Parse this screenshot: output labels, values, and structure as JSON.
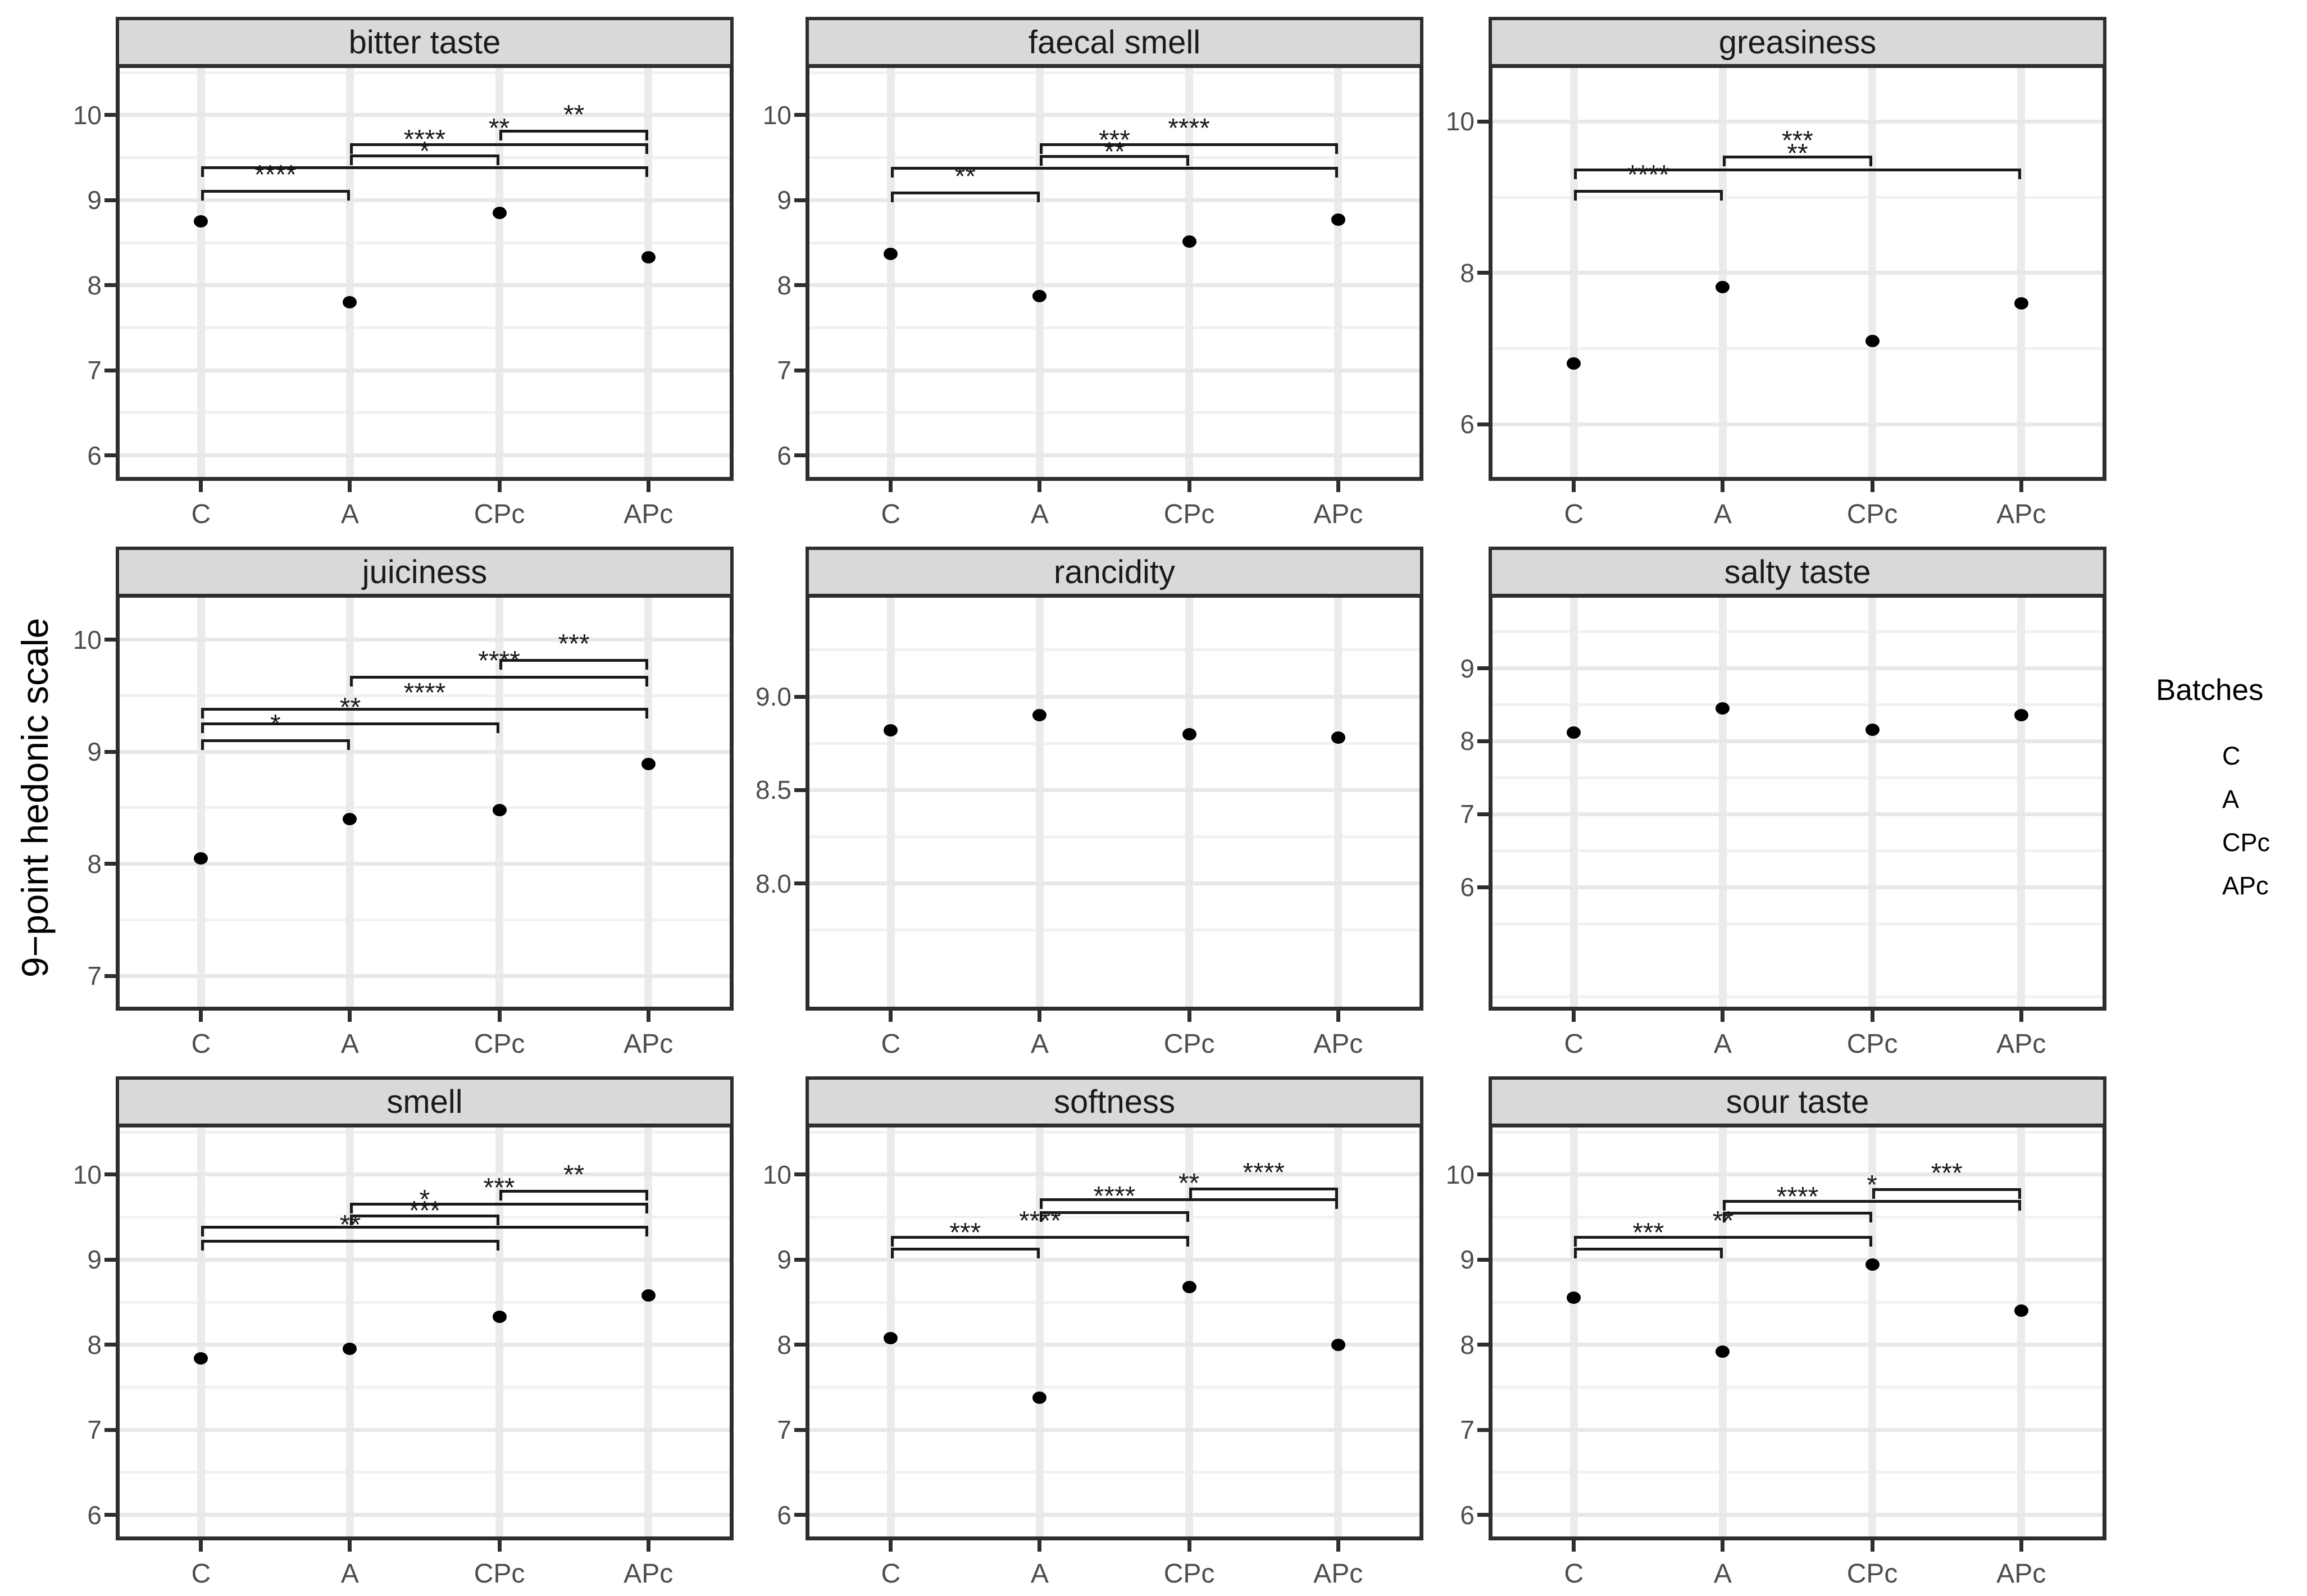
{
  "figure": {
    "y_axis_title": "9−point hedonic scale",
    "x_categories": [
      "C",
      "A",
      "CPc",
      "APc"
    ],
    "legend": {
      "title": "Batches",
      "items": [
        "C",
        "A",
        "CPc",
        "APc"
      ]
    },
    "colors": {
      "strip_fill": "#d9d9d9",
      "panel_border": "#2e2e2e",
      "grid_major": "#e8e8e8",
      "grid_minor": "#f1f1f1",
      "grid_vertical": "#ebebeb",
      "point": "#000000",
      "tick_label": "#4d4d4d",
      "bracket": "#1a1a1a"
    }
  },
  "chart_data": [
    {
      "type": "scatter",
      "title": "bitter taste",
      "categories": [
        "C",
        "A",
        "CPc",
        "APc"
      ],
      "values": [
        8.75,
        7.8,
        8.85,
        8.33
      ],
      "ylim": [
        5.7,
        10.6
      ],
      "ytick_labels": [
        "10",
        "9",
        "8",
        "7",
        "6"
      ],
      "ytick_values": [
        10,
        9,
        8,
        7,
        6
      ],
      "significance_brackets": [
        {
          "group1": "C",
          "group2": "A",
          "label": "****",
          "y": 9.12
        },
        {
          "group1": "C",
          "group2": "APc",
          "label": "*",
          "y": 9.4
        },
        {
          "group1": "A",
          "group2": "CPc",
          "label": "****",
          "y": 9.54
        },
        {
          "group1": "A",
          "group2": "APc",
          "label": "**",
          "y": 9.67
        },
        {
          "group1": "CPc",
          "group2": "APc",
          "label": "**",
          "y": 9.83
        }
      ]
    },
    {
      "type": "scatter",
      "title": "faecal smell",
      "categories": [
        "C",
        "A",
        "CPc",
        "APc"
      ],
      "values": [
        8.37,
        7.87,
        8.51,
        8.77
      ],
      "ylim": [
        5.7,
        10.6
      ],
      "ytick_labels": [
        "10",
        "9",
        "8",
        "7",
        "6"
      ],
      "ytick_values": [
        10,
        9,
        8,
        7,
        6
      ],
      "significance_brackets": [
        {
          "group1": "C",
          "group2": "A",
          "label": "**",
          "y": 9.1
        },
        {
          "group1": "C",
          "group2": "APc",
          "label": "**",
          "y": 9.39
        },
        {
          "group1": "A",
          "group2": "CPc",
          "label": "***",
          "y": 9.53
        },
        {
          "group1": "A",
          "group2": "APc",
          "label": "****",
          "y": 9.67
        }
      ]
    },
    {
      "type": "scatter",
      "title": "greasiness",
      "categories": [
        "C",
        "A",
        "CPc",
        "APc"
      ],
      "values": [
        6.8,
        7.81,
        7.1,
        7.6
      ],
      "ylim": [
        5.25,
        10.76
      ],
      "ytick_labels": [
        "10",
        "8",
        "6"
      ],
      "ytick_values": [
        10,
        8,
        6
      ],
      "significance_brackets": [
        {
          "group1": "C",
          "group2": "A",
          "label": "****",
          "y": 9.1
        },
        {
          "group1": "C",
          "group2": "APc",
          "label": "**",
          "y": 9.38
        },
        {
          "group1": "A",
          "group2": "CPc",
          "label": "***",
          "y": 9.55
        }
      ]
    },
    {
      "type": "scatter",
      "title": "juiciness",
      "categories": [
        "C",
        "A",
        "CPc",
        "APc"
      ],
      "values": [
        8.05,
        8.4,
        8.48,
        8.89
      ],
      "ylim": [
        6.69,
        10.41
      ],
      "ytick_labels": [
        "10",
        "9",
        "8",
        "7"
      ],
      "ytick_values": [
        10,
        9,
        8,
        7
      ],
      "significance_brackets": [
        {
          "group1": "C",
          "group2": "A",
          "label": "*",
          "y": 9.11
        },
        {
          "group1": "C",
          "group2": "CPc",
          "label": "**",
          "y": 9.26
        },
        {
          "group1": "C",
          "group2": "APc",
          "label": "****",
          "y": 9.39
        },
        {
          "group1": "A",
          "group2": "APc",
          "label": "****",
          "y": 9.68
        },
        {
          "group1": "CPc",
          "group2": "APc",
          "label": "***",
          "y": 9.83
        }
      ]
    },
    {
      "type": "scatter",
      "title": "rancidity",
      "categories": [
        "C",
        "A",
        "CPc",
        "APc"
      ],
      "values": [
        8.82,
        8.9,
        8.8,
        8.78
      ],
      "ylim": [
        7.32,
        9.55
      ],
      "ytick_labels": [
        "9.0",
        "8.5",
        "8.0"
      ],
      "ytick_values": [
        9.0,
        8.5,
        8.0
      ],
      "significance_brackets": []
    },
    {
      "type": "scatter",
      "title": "salty taste",
      "categories": [
        "C",
        "A",
        "CPc",
        "APc"
      ],
      "values": [
        8.12,
        8.45,
        8.16,
        8.36
      ],
      "ylim": [
        4.31,
        10.02
      ],
      "ytick_labels": [
        "9",
        "8",
        "7",
        "6"
      ],
      "ytick_values": [
        9,
        8,
        7,
        6
      ],
      "significance_brackets": []
    },
    {
      "type": "scatter",
      "title": "smell",
      "categories": [
        "C",
        "A",
        "CPc",
        "APc"
      ],
      "values": [
        7.84,
        7.95,
        8.33,
        8.58
      ],
      "ylim": [
        5.7,
        10.6
      ],
      "ytick_labels": [
        "10",
        "9",
        "8",
        "7",
        "6"
      ],
      "ytick_values": [
        10,
        9,
        8,
        7,
        6
      ],
      "significance_brackets": [
        {
          "group1": "C",
          "group2": "CPc",
          "label": "**",
          "y": 9.23
        },
        {
          "group1": "C",
          "group2": "APc",
          "label": "***",
          "y": 9.4
        },
        {
          "group1": "A",
          "group2": "CPc",
          "label": "*",
          "y": 9.53
        },
        {
          "group1": "A",
          "group2": "APc",
          "label": "***",
          "y": 9.67
        },
        {
          "group1": "CPc",
          "group2": "APc",
          "label": "**",
          "y": 9.82
        }
      ]
    },
    {
      "type": "scatter",
      "title": "softness",
      "categories": [
        "C",
        "A",
        "CPc",
        "APc"
      ],
      "values": [
        8.08,
        7.38,
        8.68,
        8.0
      ],
      "ylim": [
        5.7,
        10.6
      ],
      "ytick_labels": [
        "10",
        "9",
        "8",
        "7",
        "6"
      ],
      "ytick_values": [
        10,
        9,
        8,
        7,
        6
      ],
      "significance_brackets": [
        {
          "group1": "C",
          "group2": "A",
          "label": "***",
          "y": 9.14
        },
        {
          "group1": "C",
          "group2": "CPc",
          "label": "****",
          "y": 9.28
        },
        {
          "group1": "A",
          "group2": "CPc",
          "label": "****",
          "y": 9.57
        },
        {
          "group1": "A",
          "group2": "APc",
          "label": "**",
          "y": 9.72
        },
        {
          "group1": "CPc",
          "group2": "APc",
          "label": "****",
          "y": 9.85
        }
      ]
    },
    {
      "type": "scatter",
      "title": "sour taste",
      "categories": [
        "C",
        "A",
        "CPc",
        "APc"
      ],
      "values": [
        8.55,
        7.92,
        8.94,
        8.4
      ],
      "ylim": [
        5.7,
        10.6
      ],
      "ytick_labels": [
        "10",
        "9",
        "8",
        "7",
        "6"
      ],
      "ytick_values": [
        10,
        9,
        8,
        7,
        6
      ],
      "significance_brackets": [
        {
          "group1": "C",
          "group2": "A",
          "label": "***",
          "y": 9.14
        },
        {
          "group1": "C",
          "group2": "CPc",
          "label": "**",
          "y": 9.28
        },
        {
          "group1": "A",
          "group2": "CPc",
          "label": "****",
          "y": 9.56
        },
        {
          "group1": "A",
          "group2": "APc",
          "label": "*",
          "y": 9.7
        },
        {
          "group1": "CPc",
          "group2": "APc",
          "label": "***",
          "y": 9.84
        }
      ]
    }
  ]
}
